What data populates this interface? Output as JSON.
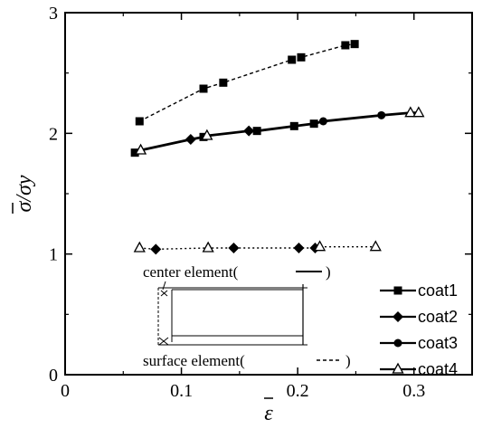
{
  "chart_data": {
    "type": "line",
    "xlabel": "ε",
    "ylabel": "σ/σy",
    "xlim": [
      0,
      0.35
    ],
    "ylim": [
      0,
      3
    ],
    "x_ticks": [
      "0",
      "0.1",
      "0.2",
      "0.3"
    ],
    "y_ticks": [
      "0",
      "1",
      "2",
      "3"
    ],
    "grid": false,
    "legend_position": "bottom-right",
    "series": [
      {
        "name": "coat1",
        "marker": "filled-square",
        "line": "solid",
        "points": [
          [
            0.06,
            1.84
          ],
          [
            0.119,
            1.97
          ],
          [
            0.165,
            2.02
          ],
          [
            0.197,
            2.06
          ],
          [
            0.214,
            2.08
          ]
        ]
      },
      {
        "name": "coat2",
        "marker": "filled-diamond",
        "line": "solid",
        "points": [
          [
            0.108,
            1.95
          ],
          [
            0.158,
            2.02
          ]
        ]
      },
      {
        "name": "coat3",
        "marker": "filled-circle",
        "line": "solid",
        "points": [
          [
            0.222,
            2.1
          ],
          [
            0.272,
            2.15
          ]
        ]
      },
      {
        "name": "coat4",
        "marker": "open-triangle",
        "line": "solid",
        "points": [
          [
            0.065,
            1.86
          ],
          [
            0.122,
            1.98
          ],
          [
            0.297,
            2.17
          ],
          [
            0.304,
            2.17
          ]
        ]
      },
      {
        "name": "",
        "marker": "filled-square",
        "line": "dashed",
        "points": [
          [
            0.064,
            2.1
          ],
          [
            0.119,
            2.37
          ],
          [
            0.136,
            2.42
          ],
          [
            0.195,
            2.61
          ],
          [
            0.203,
            2.63
          ],
          [
            0.241,
            2.73
          ],
          [
            0.249,
            2.74
          ]
        ]
      },
      {
        "name": "",
        "marker": "mixed",
        "line": "dotted",
        "points": [
          [
            0.064,
            1.05
          ],
          [
            0.078,
            1.04
          ],
          [
            0.123,
            1.05
          ],
          [
            0.145,
            1.05
          ],
          [
            0.201,
            1.05
          ],
          [
            0.215,
            1.05
          ],
          [
            0.219,
            1.06
          ],
          [
            0.267,
            1.06
          ]
        ]
      }
    ],
    "annotations": [
      "center element(",
      ")",
      "surface element(",
      ")"
    ]
  }
}
